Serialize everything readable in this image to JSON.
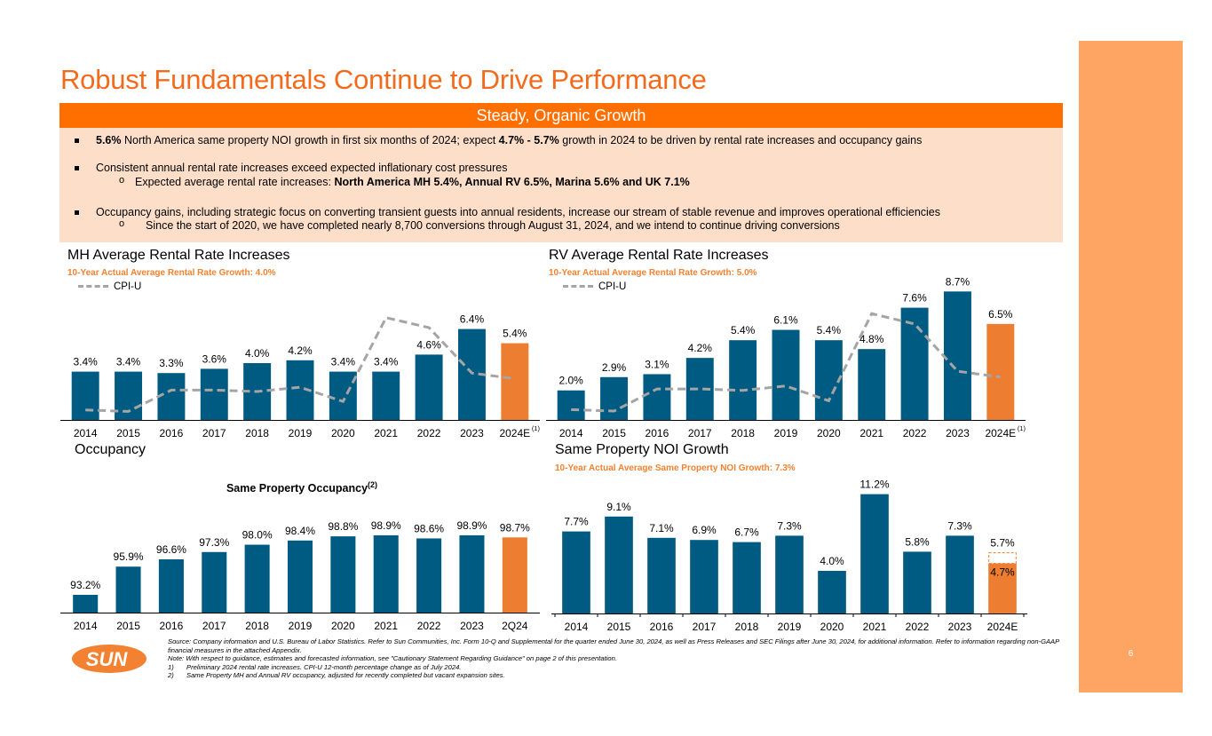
{
  "page": {
    "title": "Robust Fundamentals Continue to Drive Performance",
    "band_heading": "Steady, Organic Growth",
    "page_number": "6",
    "logo_text": "SUN",
    "colors": {
      "brand_orange": "#FF6F00",
      "title_orange": "#F26B1D",
      "bar_blue": "#005B82",
      "bar_orange": "#ED7D31",
      "cpi_gray": "#A5A5A5",
      "panel_peach": "#FDDFC9",
      "side_panel": "#FFA564"
    }
  },
  "bullets": [
    {
      "bold_lead": "5.6%",
      "text": " North America same property NOI growth in first six months of 2024; expect ",
      "bold_mid": "4.7% - 5.7%",
      "text_end": " growth in 2024 to be driven by rental rate increases and occupancy gains"
    },
    {
      "text": "Consistent annual rental rate increases exceed expected inflationary cost pressures",
      "sub": {
        "text": "Expected average rental rate increases:  ",
        "bold": "North America MH 5.4%, Annual RV 6.5%, Marina 5.6% and UK 7.1%"
      }
    },
    {
      "text": "Occupancy gains, including strategic focus on converting transient guests into annual residents, increase our stream of stable revenue and improves operational efficiencies",
      "sub": {
        "text": "Since the start of 2020, we have completed nearly 8,700 conversions through August 31, 2024, and we intend to continue driving conversions"
      }
    }
  ],
  "chart_data": [
    {
      "id": "mh",
      "type": "bar",
      "title": "MH Average Rental Rate Increases",
      "subtitle": "10-Year Actual Average Rental Rate Growth: 4.0%",
      "legend": [
        {
          "name": "CPI-U",
          "style": "dashed-line"
        }
      ],
      "legend_position": "top-left",
      "categories": [
        "2014",
        "2015",
        "2016",
        "2017",
        "2018",
        "2019",
        "2020",
        "2021",
        "2022",
        "2023",
        "2024E"
      ],
      "last_category_superscript": "(1)",
      "series": [
        {
          "name": "MH Average Rental Rate Increase",
          "type": "bar",
          "values": [
            3.4,
            3.4,
            3.3,
            3.6,
            4.0,
            4.2,
            3.4,
            3.4,
            4.6,
            6.4,
            5.4
          ],
          "labels": [
            "3.4%",
            "3.4%",
            "3.3%",
            "3.6%",
            "4.0%",
            "4.2%",
            "3.4%",
            "3.4%",
            "4.6%",
            "6.4%",
            "5.4%"
          ],
          "highlight_last": true
        },
        {
          "name": "CPI-U",
          "type": "line",
          "values": [
            0.7,
            0.6,
            2.1,
            2.1,
            2.0,
            2.3,
            1.3,
            7.2,
            6.5,
            3.3,
            2.9
          ]
        }
      ],
      "ylim": [
        0,
        8
      ],
      "grid": false
    },
    {
      "id": "rv",
      "type": "bar",
      "title": "RV Average Rental Rate Increases",
      "subtitle": "10-Year Actual Average Rental Rate Growth: 5.0%",
      "legend": [
        {
          "name": "CPI-U",
          "style": "dashed-line"
        }
      ],
      "legend_position": "top-left",
      "categories": [
        "2014",
        "2015",
        "2016",
        "2017",
        "2018",
        "2019",
        "2020",
        "2021",
        "2022",
        "2023",
        "2024E"
      ],
      "last_category_superscript": "(1)",
      "series": [
        {
          "name": "RV Average Rental Rate Increase",
          "type": "bar",
          "values": [
            2.0,
            2.9,
            3.1,
            4.2,
            5.4,
            6.1,
            5.4,
            4.8,
            7.6,
            8.7,
            6.5
          ],
          "labels": [
            "2.0%",
            "2.9%",
            "3.1%",
            "4.2%",
            "5.4%",
            "6.1%",
            "5.4%",
            "4.8%",
            "7.6%",
            "8.7%",
            "6.5%"
          ],
          "highlight_last": true
        },
        {
          "name": "CPI-U",
          "type": "line",
          "values": [
            0.7,
            0.6,
            2.1,
            2.1,
            2.0,
            2.3,
            1.3,
            7.2,
            6.5,
            3.3,
            2.9
          ]
        }
      ],
      "ylim": [
        0,
        9.5
      ],
      "grid": false
    },
    {
      "id": "occ",
      "type": "bar",
      "title": "Occupancy",
      "inner_title": "Same Property Occupancy",
      "inner_title_superscript": "(2)",
      "categories": [
        "2014",
        "2015",
        "2016",
        "2017",
        "2018",
        "2019",
        "2020",
        "2021",
        "2022",
        "2023",
        "2Q24"
      ],
      "series": [
        {
          "name": "Same Property Occupancy",
          "type": "bar",
          "values": [
            93.2,
            95.9,
            96.6,
            97.3,
            98.0,
            98.4,
            98.8,
            98.9,
            98.6,
            98.9,
            98.7
          ],
          "labels": [
            "93.2%",
            "95.9%",
            "96.6%",
            "97.3%",
            "98.0%",
            "98.4%",
            "98.8%",
            "98.9%",
            "98.6%",
            "98.9%",
            "98.7%"
          ],
          "highlight_last": true
        }
      ],
      "ylim": [
        91.5,
        100
      ],
      "grid": false
    },
    {
      "id": "noi",
      "type": "bar",
      "title": "Same Property NOI Growth",
      "subtitle": "10-Year Actual Average Same Property NOI Growth: 7.3%",
      "categories": [
        "2014",
        "2015",
        "2016",
        "2017",
        "2018",
        "2019",
        "2020",
        "2021",
        "2022",
        "2023",
        "2024E"
      ],
      "series": [
        {
          "name": "Same Property NOI Growth",
          "type": "bar",
          "values": [
            7.7,
            9.1,
            7.1,
            6.9,
            6.7,
            7.3,
            4.0,
            11.2,
            5.8,
            7.3,
            4.7
          ],
          "labels": [
            "7.7%",
            "9.1%",
            "7.1%",
            "6.9%",
            "6.7%",
            "7.3%",
            "4.0%",
            "11.2%",
            "5.8%",
            "7.3%",
            "4.7%"
          ],
          "highlight_last": true
        },
        {
          "name": "2024E guidance high end",
          "type": "range-outline",
          "index": 10,
          "value": 5.7,
          "label": "5.7%"
        }
      ],
      "ylim": [
        0,
        12.5
      ],
      "grid": false,
      "x_tick_marks": true
    }
  ],
  "footnotes": {
    "source": "Source: Company information and U.S. Bureau of Labor Statistics. Refer to Sun Communities, Inc. Form 10-Q and Supplemental for the quarter ended June 30, 2024, as well as Press Releases and SEC Filings after June 30, 2024, for additional information. Refer to information regarding non-GAAP financial measures in the attached Appendix.",
    "note": "Note: With respect to guidance, estimates and forecasted information, see \"Cautionary Statement Regarding Guidance\" on page 2 of this presentation.",
    "items": [
      {
        "num": "1)",
        "text": "Preliminary 2024 rental rate increases. CPI-U 12-month percentage change as of July 2024."
      },
      {
        "num": "2)",
        "text": "Same Property MH and Annual RV occupancy, adjusted for recently completed but vacant expansion sites."
      }
    ]
  }
}
